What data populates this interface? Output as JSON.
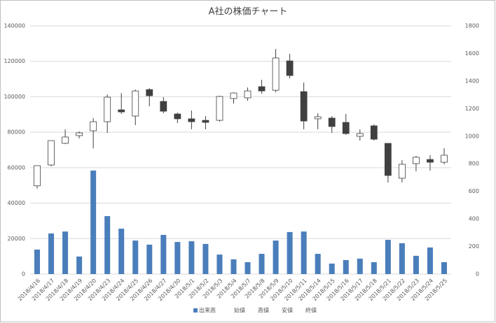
{
  "chart_data": {
    "type": "candlestick",
    "title": "A社の株価チャート",
    "categories": [
      "2018/4/16",
      "2018/4/17",
      "2018/4/18",
      "2018/4/19",
      "2018/4/20",
      "2018/4/23",
      "2018/4/24",
      "2018/4/25",
      "2018/4/26",
      "2018/4/27",
      "2018/4/30",
      "2018/5/1",
      "2018/5/2",
      "2018/5/3",
      "2018/5/4",
      "2018/5/7",
      "2018/5/8",
      "2018/5/9",
      "2018/5/10",
      "2018/5/11",
      "2018/5/14",
      "2018/5/15",
      "2018/5/16",
      "2018/5/17",
      "2018/5/18",
      "2018/5/21",
      "2018/5/22",
      "2018/5/23",
      "2018/5/24",
      "2018/5/25"
    ],
    "series": [
      {
        "name": "出来高",
        "color": "#4a7ebb",
        "values": [
          13800,
          22900,
          24000,
          9900,
          58400,
          32700,
          25600,
          18900,
          16600,
          22100,
          18100,
          18500,
          17000,
          11000,
          8300,
          6700,
          11400,
          18900,
          23700,
          24000,
          11400,
          5900,
          7900,
          8700,
          6700,
          19300,
          17400,
          10300,
          15000,
          6700
        ]
      },
      {
        "name": "始値",
        "axis": "y2",
        "values": [
          640,
          791,
          948,
          1004,
          1039,
          1105,
          1191,
          1146,
          1338,
          1252,
          1161,
          1126,
          1115,
          1115,
          1273,
          1278,
          1359,
          1333,
          1546,
          1323,
          1126,
          1131,
          1100,
          999,
          1075,
          948,
          695,
          801,
          831,
          811
        ]
      },
      {
        "name": "高値",
        "axis": "y2",
        "values": [
          786,
          968,
          1049,
          1034,
          1130,
          1302,
          1312,
          1338,
          1348,
          1283,
          1171,
          1186,
          1146,
          1293,
          1318,
          1353,
          1409,
          1632,
          1597,
          1389,
          1166,
          1146,
          1161,
          1049,
          1085,
          948,
          826,
          857,
          862,
          913
        ]
      },
      {
        "name": "安値",
        "axis": "y2",
        "values": [
          620,
          781,
          943,
          984,
          912,
          1024,
          1161,
          1080,
          1217,
          1166,
          1095,
          1050,
          1050,
          1105,
          1237,
          1257,
          1308,
          1318,
          1420,
          1050,
          1050,
          1024,
          1009,
          968,
          968,
          664,
          664,
          745,
          750,
          796
        ]
      },
      {
        "name": "終値",
        "axis": "y2",
        "values": [
          786,
          968,
          994,
          1024,
          1105,
          1283,
          1176,
          1328,
          1293,
          1181,
          1126,
          1105,
          1100,
          1288,
          1313,
          1328,
          1328,
          1567,
          1440,
          1110,
          1141,
          1070,
          1019,
          1019,
          978,
          715,
          796,
          847,
          811,
          862
        ]
      }
    ],
    "up_color": "#ffffff",
    "down_color": "#404040",
    "ylim": [
      0,
      140000
    ],
    "yticks": [
      0,
      20000,
      40000,
      60000,
      80000,
      100000,
      120000,
      140000
    ],
    "y2lim": [
      0,
      1800
    ],
    "y2ticks": [
      0,
      200,
      400,
      600,
      800,
      1000,
      1200,
      1400,
      1600,
      1800
    ],
    "grid": true
  }
}
